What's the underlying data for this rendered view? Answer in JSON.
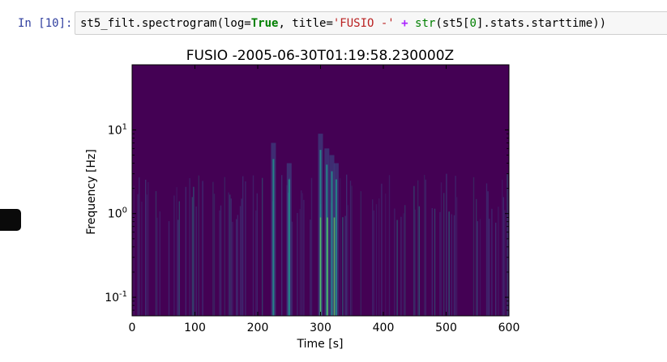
{
  "cell": {
    "prompt": "In [10]:",
    "code": {
      "p1": "st5_filt.spectrogram(log=",
      "kw_true": "True",
      "p2": ", title=",
      "str_lit": "'FUSIO -'",
      "p3": " ",
      "op_plus": "+",
      "p4": " ",
      "bi_str": "str",
      "p5": "(st5[",
      "num0": "0",
      "p6": "].stats.starttime))"
    }
  },
  "figure": {
    "title": "FUSIO -2005-06-30T01:19:58.230000Z",
    "xlabel": "Time [s]",
    "ylabel": "Frequency [Hz]",
    "x_ticks": [
      "0",
      "100",
      "200",
      "300",
      "400",
      "500",
      "600"
    ],
    "y_ticks": [
      {
        "base": "10",
        "exp": "-1"
      },
      {
        "base": "10",
        "exp": "0"
      },
      {
        "base": "10",
        "exp": "1"
      }
    ],
    "colors": {
      "low": "#440154",
      "mid": "#3b528b",
      "high": "#21918c",
      "peak": "#5ec962"
    }
  },
  "chart_data": {
    "type": "heatmap",
    "title": "FUSIO -2005-06-30T01:19:58.230000Z",
    "xlabel": "Time [s]",
    "ylabel": "Frequency [Hz]",
    "xlim": [
      0,
      600
    ],
    "ylim": [
      0.06,
      60
    ],
    "yscale": "log",
    "colormap": "viridis",
    "x_ticks": [
      0,
      100,
      200,
      300,
      400,
      500,
      600
    ],
    "y_ticks": [
      0.1,
      1,
      10
    ],
    "energy_bursts": [
      {
        "time": 225,
        "top_freq": 7
      },
      {
        "time": 250,
        "top_freq": 4
      },
      {
        "time": 300,
        "top_freq": 9
      },
      {
        "time": 310,
        "top_freq": 6
      },
      {
        "time": 318,
        "top_freq": 5
      },
      {
        "time": 325,
        "top_freq": 4
      }
    ]
  }
}
